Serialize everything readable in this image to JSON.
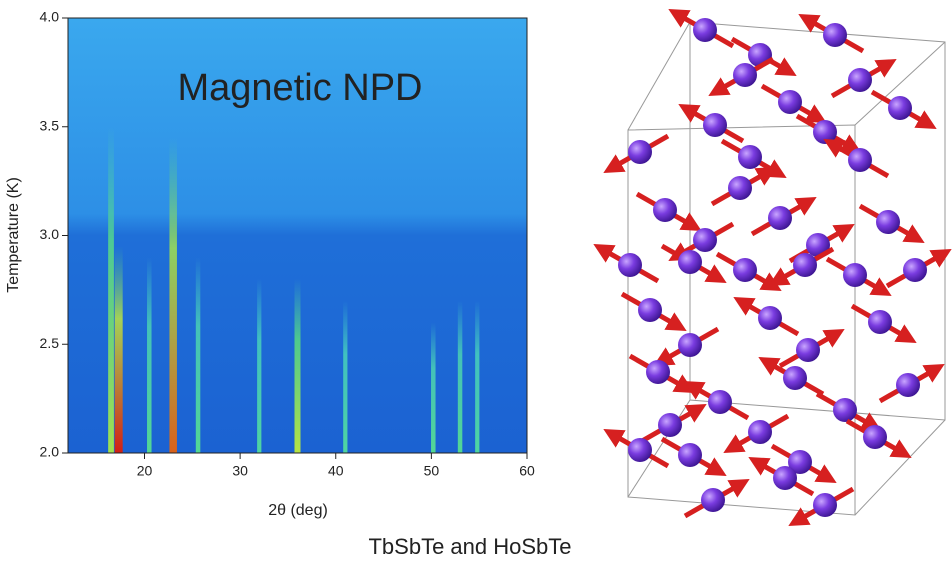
{
  "chart_data": {
    "type": "heatmap",
    "title": "Magnetic NPD",
    "x_label": "2θ (deg)",
    "y_label": "Temperature (K)",
    "caption": "TbSbTe and HoSbTe",
    "xlim": [
      12,
      60
    ],
    "ylim": [
      2.0,
      4.0
    ],
    "xticks": [
      20,
      30,
      40,
      50,
      60
    ],
    "yticks": [
      {
        "value": 2.0,
        "label": "2.0"
      },
      {
        "value": 2.5,
        "label": "2.5"
      },
      {
        "value": 3.0,
        "label": "3.0"
      },
      {
        "value": 3.5,
        "label": "3.5"
      },
      {
        "value": 4.0,
        "label": "4.0"
      }
    ],
    "peaks": {
      "x": [
        16.5,
        17.3,
        20.5,
        23.0,
        25.6,
        32.0,
        36.0,
        41.0,
        50.2,
        53.0,
        54.8
      ],
      "top": [
        3.5,
        2.95,
        2.9,
        3.45,
        2.9,
        2.8,
        2.8,
        2.7,
        2.6,
        2.7,
        2.7
      ],
      "intensity": [
        0.55,
        1.0,
        0.3,
        0.9,
        0.3,
        0.25,
        0.6,
        0.25,
        0.3,
        0.3,
        0.25
      ]
    }
  }
}
